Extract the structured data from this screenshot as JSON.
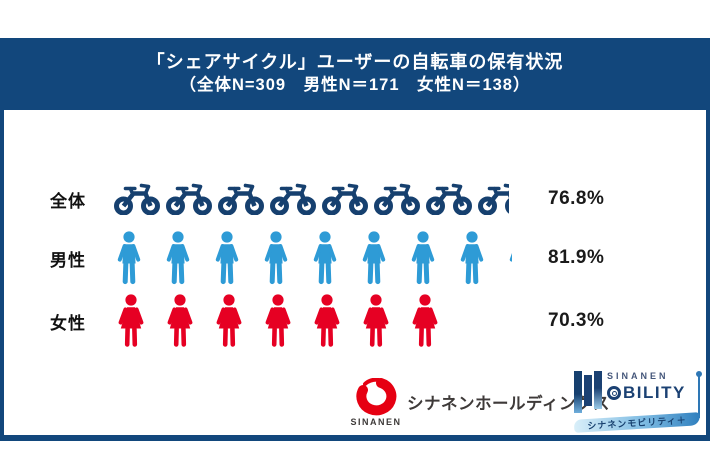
{
  "header": {
    "title": "「シェアサイクル」ユーザーの自転車の保有状況",
    "subtitle": "（全体N=309　男性N＝171　女性N＝138）"
  },
  "chart_data": {
    "type": "bar",
    "variant": "pictogram",
    "title": "「シェアサイクル」ユーザーの自転車の保有状況",
    "subtitle": "（全体N=309　男性N＝171　女性N＝138）",
    "unit": "%",
    "icon_unit_percent": 10,
    "categories": [
      "全体",
      "男性",
      "女性"
    ],
    "values": [
      76.8,
      81.9,
      70.3
    ],
    "labels": [
      "76.8%",
      "81.9%",
      "70.3%"
    ],
    "icons": [
      "bicycle",
      "male",
      "female"
    ],
    "colors": [
      "#16406F",
      "#2E9BD6",
      "#E60023"
    ],
    "sample_sizes": {
      "全体": 309,
      "男性": 171,
      "女性": 138
    },
    "xlim": [
      0,
      100
    ],
    "legend": "none",
    "grid": "off"
  },
  "footer": {
    "left_logo": {
      "mark": "sinanen-flame",
      "mark_color": "#E60012",
      "name": "SINANEN",
      "company": "シナネンホールディングス"
    },
    "right_logo": {
      "top": "SINANEN",
      "main_o": "O",
      "main_rest": "BILITY",
      "banner": "シナネンモビリティ＋"
    }
  },
  "colors": {
    "header_bg": "#12477C",
    "card_border": "#12477C",
    "percent_text": "#1A1A1A",
    "logo_red": "#E60012",
    "logo_navy": "#1B4173",
    "logo_gray": "#3E3A39"
  }
}
